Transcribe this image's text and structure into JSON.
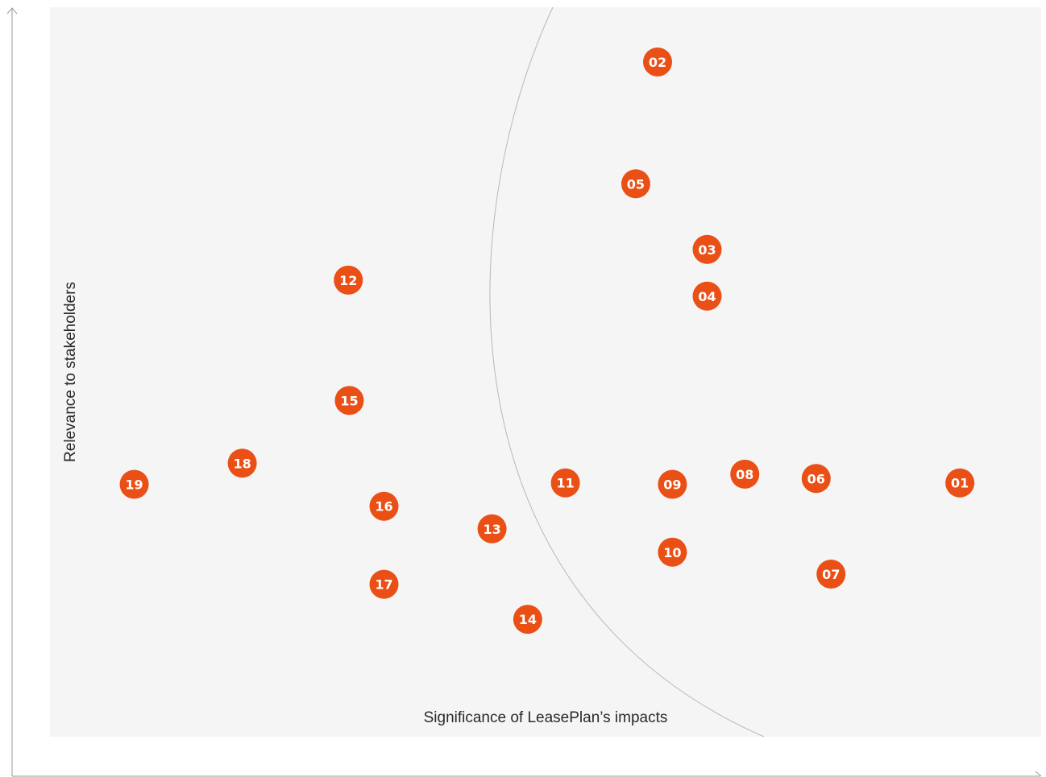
{
  "chart_data": {
    "type": "scatter",
    "title": "",
    "xlabel": "Significance of LeasePlan’s impacts",
    "ylabel": "Relevance to stakeholders",
    "xlim": [
      0,
      100
    ],
    "ylim": [
      0,
      100
    ],
    "grid": false,
    "legend": "none",
    "points": [
      {
        "label": "01",
        "x": 91.8,
        "y": 34.8
      },
      {
        "label": "02",
        "x": 61.3,
        "y": 92.5
      },
      {
        "label": "03",
        "x": 66.3,
        "y": 66.8
      },
      {
        "label": "04",
        "x": 66.3,
        "y": 60.4
      },
      {
        "label": "05",
        "x": 59.1,
        "y": 75.8
      },
      {
        "label": "06",
        "x": 77.3,
        "y": 35.4
      },
      {
        "label": "07",
        "x": 78.8,
        "y": 22.3
      },
      {
        "label": "08",
        "x": 70.1,
        "y": 36.0
      },
      {
        "label": "09",
        "x": 62.8,
        "y": 34.6
      },
      {
        "label": "10",
        "x": 62.8,
        "y": 25.3
      },
      {
        "label": "11",
        "x": 52.0,
        "y": 34.8
      },
      {
        "label": "12",
        "x": 30.1,
        "y": 62.6
      },
      {
        "label": "13",
        "x": 44.6,
        "y": 28.5
      },
      {
        "label": "14",
        "x": 48.2,
        "y": 16.1
      },
      {
        "label": "15",
        "x": 30.2,
        "y": 46.1
      },
      {
        "label": "16",
        "x": 33.7,
        "y": 31.6
      },
      {
        "label": "17",
        "x": 33.7,
        "y": 20.9
      },
      {
        "label": "18",
        "x": 19.4,
        "y": 37.5
      },
      {
        "label": "19",
        "x": 8.5,
        "y": 34.6
      }
    ]
  },
  "colors": {
    "marker": "#ea4f16",
    "marker_text": "#ffffff",
    "plot_background": "#f5f5f5",
    "axis": "#9a9a9a",
    "arc": "#b8b8b8",
    "text": "#2a2a2a"
  }
}
